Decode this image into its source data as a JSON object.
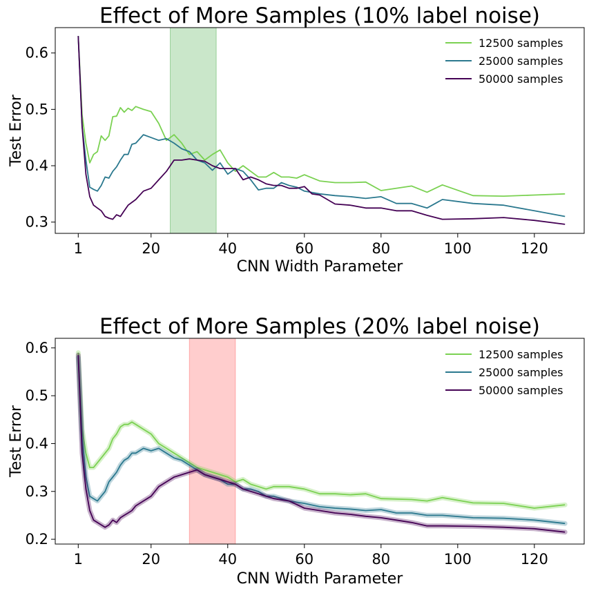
{
  "colors": {
    "s12500": "#7ad151",
    "s25000": "#2a788e",
    "s50000": "#440154",
    "band_top": "#2ca02c",
    "band_bottom": "#ff4d4d"
  },
  "chart_data": [
    {
      "type": "line",
      "title": "Effect of More Samples (10% label noise)",
      "xlabel": "CNN Width Parameter",
      "ylabel": "Test Error",
      "xlim": [
        -5,
        133
      ],
      "ylim": [
        0.28,
        0.645
      ],
      "xticks": [
        1,
        20,
        40,
        60,
        80,
        100,
        120
      ],
      "yticks": [
        0.3,
        0.4,
        0.5,
        0.6
      ],
      "xtick_labels": [
        "1",
        "20",
        "40",
        "60",
        "80",
        "100",
        "120"
      ],
      "ytick_labels": [
        "0.3",
        "0.4",
        "0.5",
        "0.6"
      ],
      "shaded_region": [
        25,
        37
      ],
      "legend": [
        "12500 samples",
        "25000 samples",
        "50000 samples"
      ],
      "series": [
        {
          "name": "12500 samples",
          "x": [
            1,
            2,
            3,
            4,
            5,
            6,
            7,
            8,
            9,
            10,
            11,
            12,
            13,
            14,
            15,
            16,
            18,
            20,
            22,
            24,
            26,
            28,
            30,
            32,
            34,
            36,
            38,
            40,
            42,
            44,
            48,
            50,
            52,
            54,
            56,
            58,
            60,
            64,
            68,
            72,
            76,
            80,
            88,
            92,
            96,
            104,
            112,
            120,
            128
          ],
          "y": [
            0.63,
            0.49,
            0.44,
            0.405,
            0.42,
            0.425,
            0.453,
            0.445,
            0.453,
            0.487,
            0.488,
            0.503,
            0.495,
            0.502,
            0.498,
            0.505,
            0.5,
            0.496,
            0.475,
            0.445,
            0.455,
            0.44,
            0.42,
            0.425,
            0.41,
            0.42,
            0.428,
            0.405,
            0.39,
            0.4,
            0.38,
            0.38,
            0.388,
            0.38,
            0.38,
            0.378,
            0.384,
            0.373,
            0.37,
            0.37,
            0.371,
            0.356,
            0.364,
            0.353,
            0.366,
            0.347,
            0.346,
            0.348,
            0.35
          ]
        },
        {
          "name": "25000 samples",
          "x": [
            1,
            2,
            3,
            4,
            5,
            6,
            7,
            8,
            9,
            10,
            11,
            12,
            13,
            14,
            15,
            16,
            18,
            20,
            22,
            24,
            26,
            28,
            30,
            32,
            34,
            36,
            38,
            40,
            42,
            44,
            46,
            48,
            50,
            52,
            54,
            56,
            58,
            60,
            64,
            68,
            72,
            76,
            80,
            84,
            88,
            92,
            96,
            104,
            112,
            120,
            128
          ],
          "y": [
            0.63,
            0.47,
            0.41,
            0.362,
            0.358,
            0.355,
            0.365,
            0.38,
            0.378,
            0.39,
            0.398,
            0.41,
            0.42,
            0.42,
            0.438,
            0.44,
            0.455,
            0.45,
            0.445,
            0.448,
            0.44,
            0.43,
            0.425,
            0.41,
            0.405,
            0.392,
            0.405,
            0.385,
            0.395,
            0.39,
            0.375,
            0.357,
            0.36,
            0.36,
            0.37,
            0.365,
            0.362,
            0.355,
            0.35,
            0.347,
            0.345,
            0.342,
            0.345,
            0.333,
            0.333,
            0.325,
            0.34,
            0.333,
            0.33,
            0.32,
            0.31
          ]
        },
        {
          "name": "50000 samples",
          "x": [
            1,
            2,
            3,
            4,
            5,
            6,
            7,
            8,
            9,
            10,
            11,
            12,
            13,
            14,
            15,
            16,
            18,
            20,
            22,
            24,
            26,
            28,
            30,
            32,
            34,
            36,
            38,
            40,
            42,
            44,
            46,
            48,
            50,
            52,
            54,
            56,
            58,
            60,
            62,
            64,
            68,
            72,
            76,
            80,
            84,
            88,
            92,
            96,
            104,
            112,
            120,
            128
          ],
          "y": [
            0.63,
            0.47,
            0.385,
            0.345,
            0.33,
            0.325,
            0.32,
            0.31,
            0.307,
            0.305,
            0.313,
            0.31,
            0.32,
            0.33,
            0.335,
            0.34,
            0.355,
            0.36,
            0.375,
            0.39,
            0.41,
            0.41,
            0.412,
            0.41,
            0.408,
            0.4,
            0.395,
            0.395,
            0.395,
            0.375,
            0.38,
            0.375,
            0.368,
            0.365,
            0.365,
            0.36,
            0.36,
            0.363,
            0.35,
            0.348,
            0.332,
            0.33,
            0.325,
            0.325,
            0.32,
            0.32,
            0.312,
            0.305,
            0.306,
            0.308,
            0.303,
            0.296
          ]
        }
      ]
    },
    {
      "type": "line",
      "title": "Effect of More Samples (20% label noise)",
      "xlabel": "CNN Width Parameter",
      "ylabel": "Test Error",
      "xlim": [
        -5,
        133
      ],
      "ylim": [
        0.19,
        0.62
      ],
      "xticks": [
        1,
        20,
        40,
        60,
        80,
        100,
        120
      ],
      "yticks": [
        0.2,
        0.3,
        0.4,
        0.5,
        0.6
      ],
      "xtick_labels": [
        "1",
        "20",
        "40",
        "60",
        "80",
        "100",
        "120"
      ],
      "ytick_labels": [
        "0.2",
        "0.3",
        "0.4",
        "0.5",
        "0.6"
      ],
      "shaded_region": [
        30,
        42
      ],
      "legend": [
        "12500 samples",
        "25000 samples",
        "50000 samples"
      ],
      "series": [
        {
          "name": "12500 samples",
          "x": [
            1,
            2,
            3,
            4,
            5,
            6,
            7,
            8,
            9,
            10,
            11,
            12,
            13,
            14,
            15,
            16,
            18,
            20,
            22,
            24,
            26,
            28,
            30,
            32,
            34,
            36,
            38,
            40,
            42,
            44,
            46,
            48,
            50,
            52,
            56,
            60,
            64,
            68,
            72,
            76,
            80,
            88,
            92,
            96,
            104,
            112,
            120,
            128
          ],
          "y": [
            0.59,
            0.43,
            0.38,
            0.35,
            0.35,
            0.36,
            0.37,
            0.38,
            0.39,
            0.41,
            0.42,
            0.435,
            0.44,
            0.44,
            0.445,
            0.44,
            0.43,
            0.42,
            0.4,
            0.39,
            0.38,
            0.37,
            0.36,
            0.35,
            0.345,
            0.34,
            0.335,
            0.33,
            0.32,
            0.325,
            0.315,
            0.31,
            0.305,
            0.31,
            0.31,
            0.305,
            0.295,
            0.295,
            0.293,
            0.295,
            0.285,
            0.283,
            0.28,
            0.287,
            0.276,
            0.275,
            0.265,
            0.272
          ]
        },
        {
          "name": "25000 samples",
          "x": [
            1,
            2,
            3,
            4,
            5,
            6,
            7,
            8,
            9,
            10,
            11,
            12,
            13,
            14,
            15,
            16,
            18,
            20,
            22,
            24,
            26,
            28,
            30,
            32,
            34,
            36,
            38,
            40,
            42,
            44,
            46,
            48,
            50,
            52,
            56,
            60,
            64,
            68,
            72,
            76,
            80,
            84,
            88,
            92,
            96,
            104,
            112,
            120,
            128
          ],
          "y": [
            0.58,
            0.41,
            0.33,
            0.29,
            0.285,
            0.28,
            0.29,
            0.3,
            0.32,
            0.33,
            0.34,
            0.355,
            0.365,
            0.37,
            0.38,
            0.38,
            0.39,
            0.385,
            0.39,
            0.38,
            0.37,
            0.365,
            0.355,
            0.345,
            0.335,
            0.33,
            0.325,
            0.315,
            0.315,
            0.305,
            0.305,
            0.3,
            0.29,
            0.29,
            0.28,
            0.275,
            0.268,
            0.265,
            0.263,
            0.26,
            0.262,
            0.255,
            0.255,
            0.25,
            0.25,
            0.245,
            0.244,
            0.24,
            0.233
          ]
        },
        {
          "name": "50000 samples",
          "x": [
            1,
            2,
            3,
            4,
            5,
            6,
            7,
            8,
            9,
            10,
            11,
            12,
            13,
            14,
            15,
            16,
            18,
            20,
            22,
            24,
            26,
            28,
            30,
            32,
            34,
            36,
            38,
            40,
            42,
            44,
            46,
            48,
            50,
            52,
            56,
            60,
            64,
            68,
            72,
            76,
            80,
            84,
            88,
            92,
            96,
            104,
            112,
            120,
            128
          ],
          "y": [
            0.585,
            0.38,
            0.305,
            0.26,
            0.24,
            0.235,
            0.23,
            0.225,
            0.23,
            0.24,
            0.235,
            0.245,
            0.25,
            0.255,
            0.26,
            0.27,
            0.28,
            0.29,
            0.31,
            0.32,
            0.33,
            0.335,
            0.34,
            0.345,
            0.335,
            0.33,
            0.325,
            0.32,
            0.315,
            0.305,
            0.3,
            0.295,
            0.29,
            0.285,
            0.28,
            0.265,
            0.26,
            0.255,
            0.252,
            0.248,
            0.245,
            0.24,
            0.235,
            0.228,
            0.228,
            0.227,
            0.225,
            0.222,
            0.215
          ]
        }
      ]
    }
  ]
}
